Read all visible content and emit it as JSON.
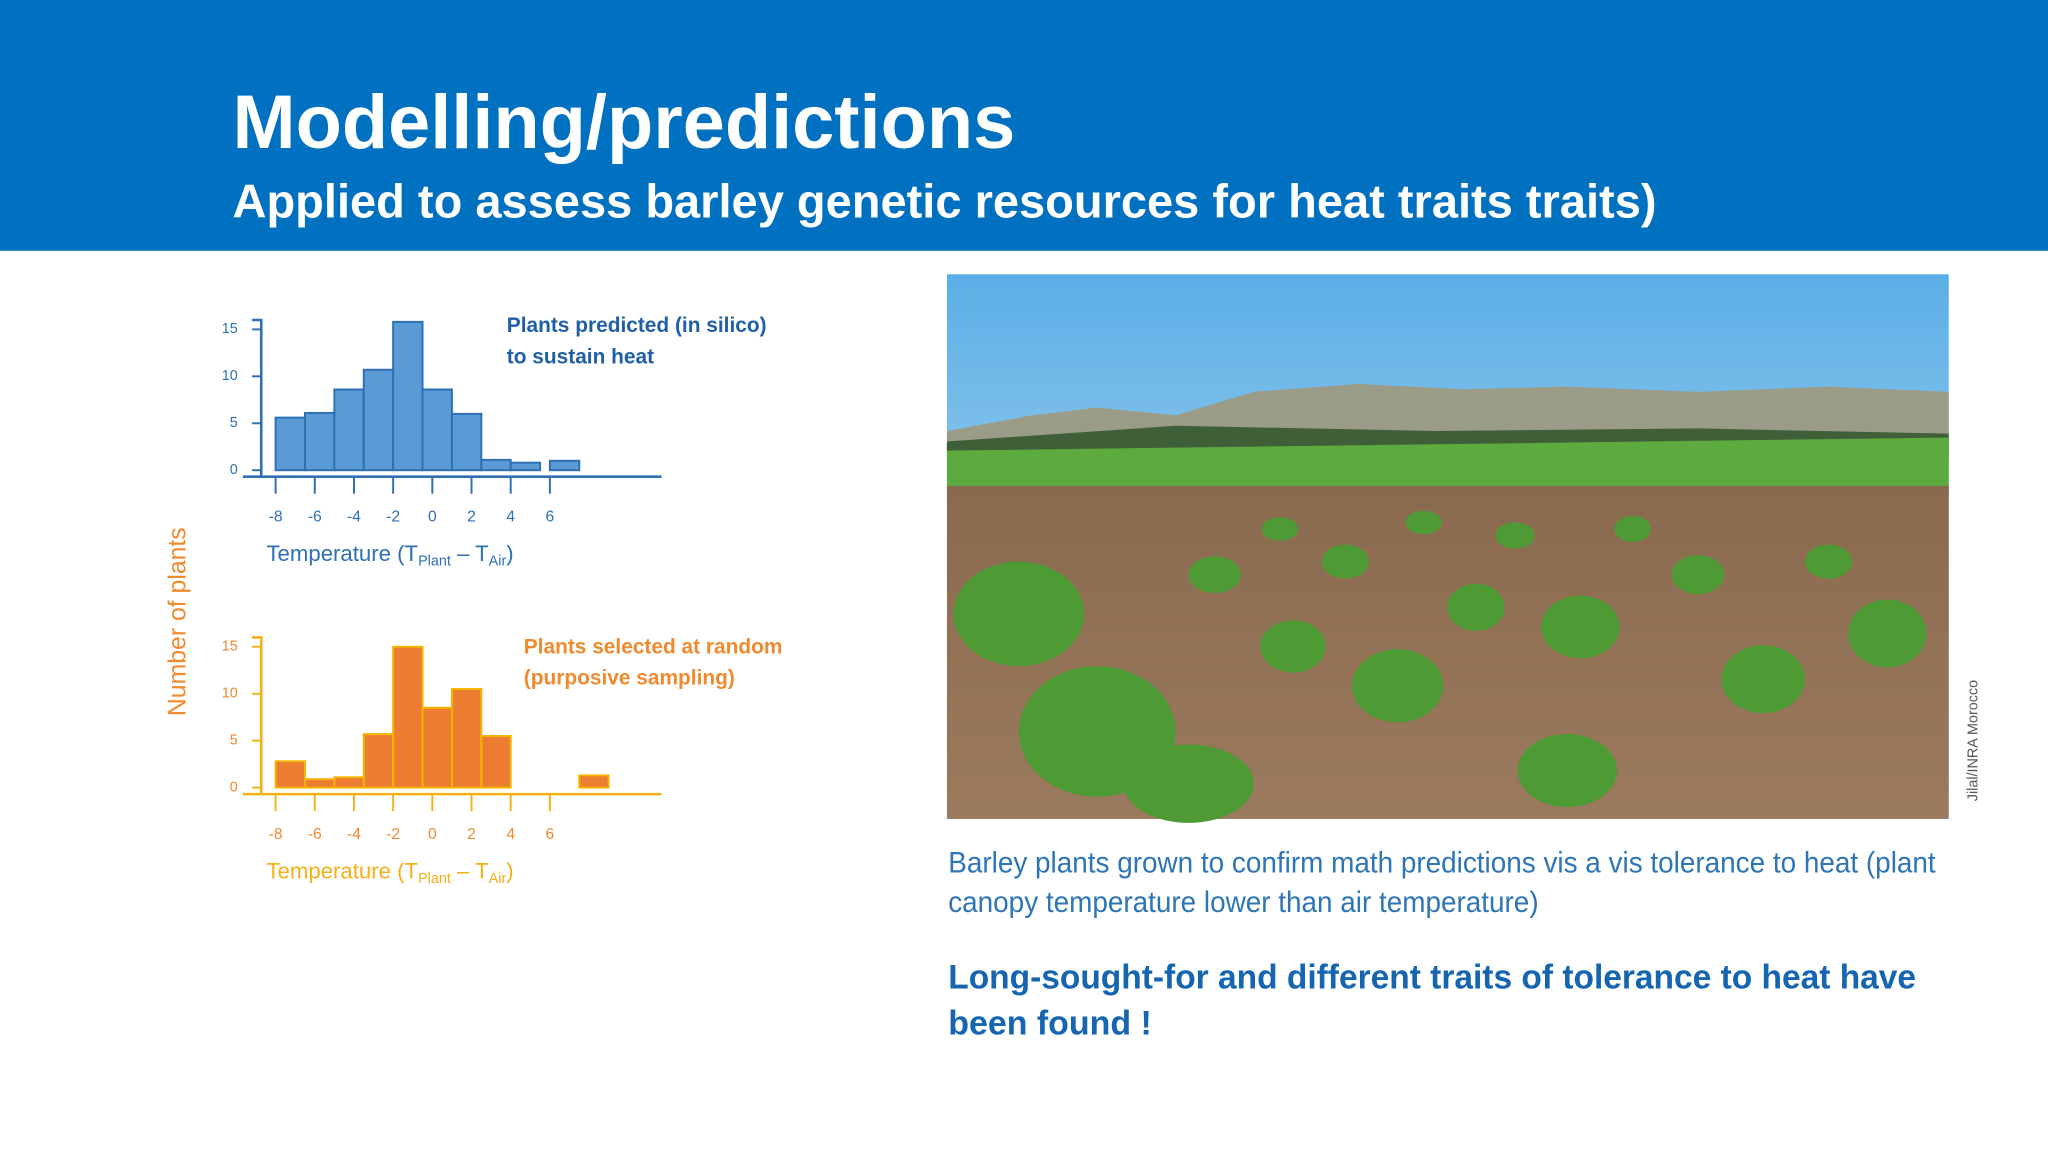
{
  "header": {
    "title": "Modelling/predictions",
    "subtitle": "Applied to assess barley genetic resources for heat traits traits)"
  },
  "y_label": "Number of plants",
  "charts": [
    {
      "type": "histogram",
      "annotation": [
        "Plants predicted (in silico)",
        "to sustain heat"
      ],
      "bins": [
        -8,
        -6.5,
        -5,
        -3.5,
        -2,
        -0.5,
        1,
        2.5,
        4,
        5.5,
        6,
        7.5
      ],
      "values": [
        5.6,
        6.1,
        8.6,
        10.7,
        15.8,
        8.6,
        6,
        1.1,
        0.8,
        0,
        1
      ],
      "ylim": [
        0,
        16
      ],
      "yticks": [
        0,
        5,
        10,
        15
      ],
      "xlim": [
        -8.5,
        11.7
      ],
      "xticks": [
        -8,
        -6,
        -4,
        -2,
        0,
        2,
        4,
        6
      ],
      "x_label": [
        "Temperature (T",
        "Plant",
        " – T",
        "Air",
        ")"
      ],
      "color": "#5b9bd5",
      "edge_color": "#2e6fb5",
      "text_color": "#2e6fb5",
      "tick_color": "#2e6fb5",
      "annotation_color": "#1f5fa8"
    },
    {
      "type": "histogram",
      "annotation": [
        "Plants selected at random",
        "(purposive sampling)"
      ],
      "bins": [
        -8,
        -6.5,
        -5,
        -3.5,
        -2,
        -0.5,
        1,
        2.5,
        4,
        7.5,
        9
      ],
      "values": [
        2.8,
        0.9,
        1.1,
        5.7,
        15,
        8.5,
        10.5,
        5.5,
        0,
        1.3
      ],
      "ylim": [
        0,
        16
      ],
      "yticks": [
        0,
        5,
        10,
        15
      ],
      "xlim": [
        -8.5,
        11.7
      ],
      "xticks": [
        -8,
        -6,
        -4,
        -2,
        0,
        2,
        4,
        6
      ],
      "x_label": [
        "Temperature (T",
        "Plant",
        " – T",
        "Air",
        ")"
      ],
      "color": "#ed7d31",
      "edge_color": "#f5b400",
      "text_color": "#f08a2e",
      "tick_color": "#f5b018",
      "annotation_color": "#f08a2e"
    }
  ],
  "photo_credit": "Jilal/INRA Morocco",
  "caption": [
    "Barley plants grown to confirm math predictions vis a vis tolerance to heat (plant",
    "canopy temperature lower than air temperature)"
  ],
  "conclusion": [
    "Long-sought-for and different traits of tolerance to heat have",
    "been found !"
  ]
}
